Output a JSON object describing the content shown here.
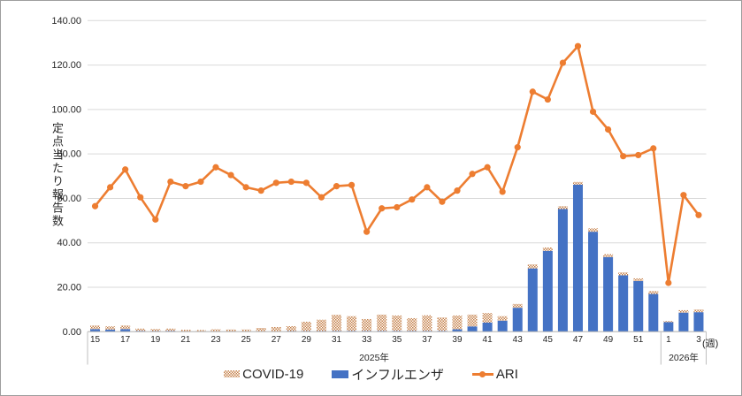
{
  "chart_data": {
    "type": "combo-stacked-bar-line",
    "title": "",
    "ylabel": "定点当たり報告数",
    "x_axis_suffix": "(週)",
    "ylim": [
      0,
      140
    ],
    "ytick_step": 20,
    "ytick_labels": [
      "0.00",
      "20.00",
      "40.00",
      "60.00",
      "80.00",
      "100.00",
      "120.00",
      "140.00"
    ],
    "grid": true,
    "legend_position": "bottom",
    "x_groups": [
      {
        "label": "2025年",
        "first_week": 15,
        "last_week": 52
      },
      {
        "label": "2026年",
        "first_week": 1,
        "last_week": 3
      }
    ],
    "categories": [
      15,
      16,
      17,
      18,
      19,
      20,
      21,
      22,
      23,
      24,
      25,
      26,
      27,
      28,
      29,
      30,
      31,
      32,
      33,
      34,
      35,
      36,
      37,
      38,
      39,
      40,
      41,
      42,
      43,
      44,
      45,
      46,
      47,
      48,
      49,
      50,
      51,
      52,
      1,
      2,
      3
    ],
    "week_tick_labels": [
      "15",
      "",
      "17",
      "",
      "19",
      "",
      "21",
      "",
      "23",
      "",
      "25",
      "",
      "27",
      "",
      "29",
      "",
      "31",
      "",
      "33",
      "",
      "35",
      "",
      "37",
      "",
      "39",
      "",
      "41",
      "",
      "43",
      "",
      "45",
      "",
      "47",
      "",
      "49",
      "",
      "51",
      "",
      "1",
      "",
      "3"
    ],
    "series": [
      {
        "name": "COVID-19",
        "type": "bar",
        "stack_order": "top",
        "fill": "dot-pattern",
        "color_hex": "#C5804A",
        "values": [
          1.6,
          1.4,
          1.6,
          1.0,
          0.9,
          1.0,
          0.7,
          0.6,
          0.9,
          0.8,
          0.8,
          1.5,
          1.9,
          2.2,
          4.2,
          5.1,
          7.2,
          6.6,
          5.3,
          7.3,
          6.9,
          5.7,
          7.0,
          6.0,
          6.2,
          5.3,
          4.3,
          2.0,
          1.7,
          1.8,
          1.5,
          1.3,
          1.2,
          1.5,
          1.3,
          1.3,
          1.2,
          1.3,
          0.5,
          1.1,
          1.2
        ]
      },
      {
        "name": "インフルエンザ",
        "type": "bar",
        "stack_order": "bottom",
        "fill": "solid",
        "color_hex": "#4472C4",
        "values": [
          1.2,
          1.0,
          1.2,
          0.4,
          0.3,
          0.4,
          0.2,
          0.2,
          0.2,
          0.2,
          0.2,
          0.2,
          0.2,
          0.3,
          0.3,
          0.3,
          0.4,
          0.4,
          0.4,
          0.4,
          0.4,
          0.4,
          0.4,
          0.4,
          1.1,
          2.4,
          4.1,
          5.0,
          10.8,
          28.5,
          36.4,
          55.2,
          66.2,
          45.0,
          33.6,
          25.4,
          22.8,
          17.0,
          4.3,
          8.6,
          8.8
        ]
      },
      {
        "name": "ARI",
        "type": "line",
        "fill": "solid",
        "color_hex": "#ED7D31",
        "values": [
          56.5,
          65,
          73,
          60.5,
          50.5,
          67.5,
          65.5,
          67.5,
          74,
          70.5,
          65,
          63.5,
          67,
          67.5,
          67,
          60.5,
          65.5,
          66,
          45,
          55.5,
          56,
          59.5,
          65,
          58.5,
          63.5,
          71,
          74,
          63,
          83,
          108,
          104.5,
          121,
          128.5,
          99,
          91,
          79,
          79.5,
          82.5,
          22,
          61.5,
          52.5
        ]
      }
    ],
    "colors": {
      "gridline": "#D9D9D9",
      "axis": "#BFBFBF",
      "text": "#262626"
    }
  }
}
